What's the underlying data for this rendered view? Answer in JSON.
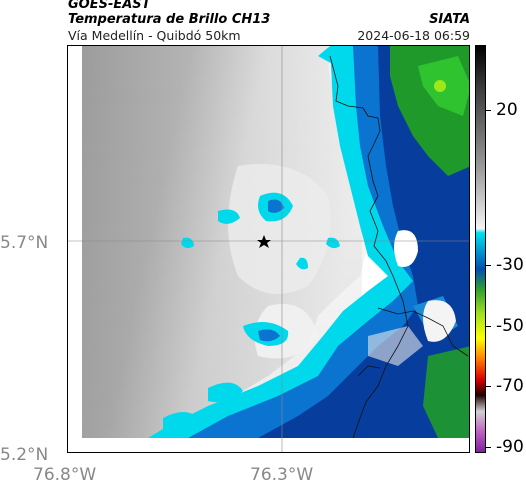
{
  "header": {
    "satellite": "GOES-EAST",
    "product": "Temperatura de Brillo CH13",
    "region": "Vía Medellín - Quibdó 50km",
    "org": "SIATA",
    "datetime": "2024-06-18 06:59"
  },
  "axes": {
    "lat_labels": [
      "5.7°N",
      "5.2°N"
    ],
    "lon_labels": [
      "76.8°W",
      "76.3°W"
    ]
  },
  "colorbar": {
    "labels": [
      "20",
      "-30",
      "-50",
      "-70",
      "-90"
    ]
  },
  "marker": {
    "icon": "star-icon"
  },
  "colors": {
    "cloud_cold": "#00e0f0",
    "cloud_colder": "#0060c0",
    "cloud_deep": "#003090",
    "green": "#20a020",
    "warm_gray": "#a8a8a8"
  }
}
